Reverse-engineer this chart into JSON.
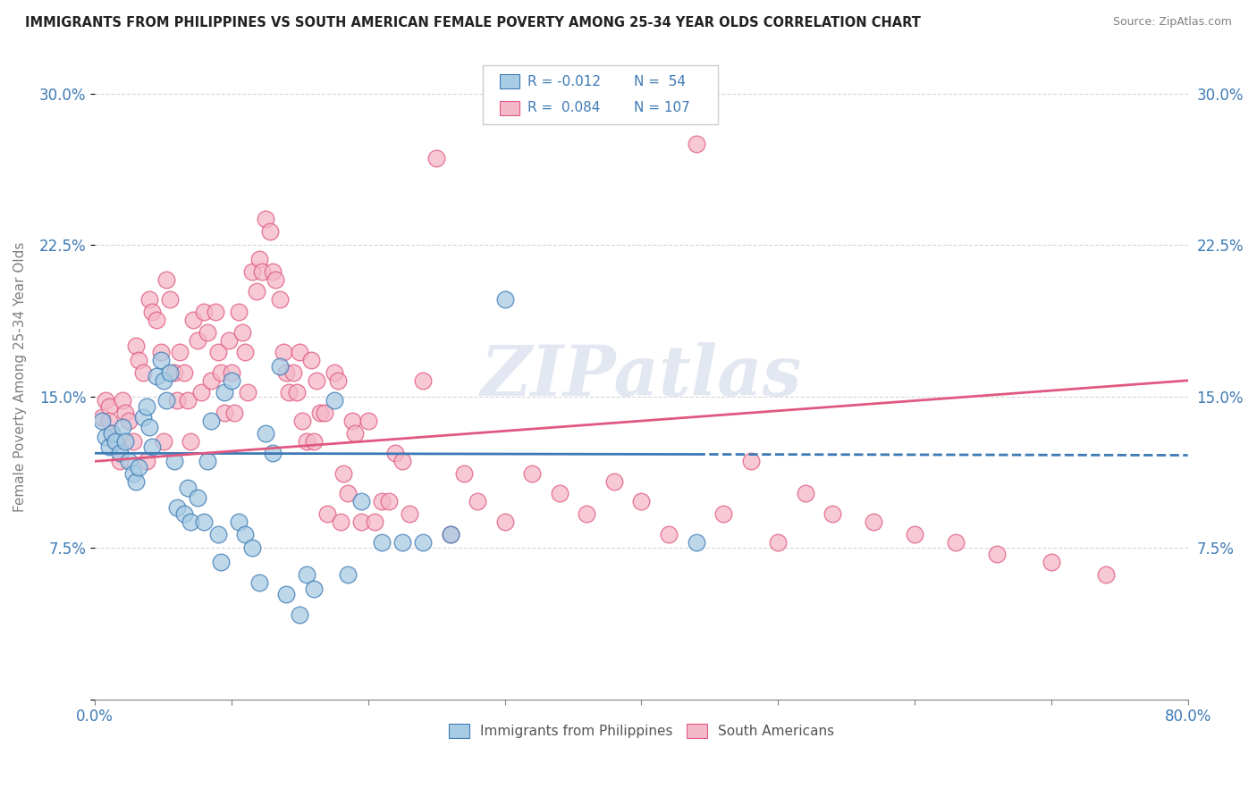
{
  "title": "IMMIGRANTS FROM PHILIPPINES VS SOUTH AMERICAN FEMALE POVERTY AMONG 25-34 YEAR OLDS CORRELATION CHART",
  "source": "Source: ZipAtlas.com",
  "ylabel": "Female Poverty Among 25-34 Year Olds",
  "xlim": [
    0.0,
    0.8
  ],
  "ylim": [
    0.0,
    0.32
  ],
  "yticks": [
    0.0,
    0.075,
    0.15,
    0.225,
    0.3
  ],
  "ytick_labels": [
    "",
    "7.5%",
    "15.0%",
    "22.5%",
    "30.0%"
  ],
  "xticks": [
    0.0,
    0.1,
    0.2,
    0.3,
    0.4,
    0.5,
    0.6,
    0.7,
    0.8
  ],
  "color_blue": "#a8cce4",
  "color_pink": "#f4b8c8",
  "color_blue_dark": "#3d7ab5",
  "color_pink_dark": "#e05880",
  "legend_label1": "Immigrants from Philippines",
  "legend_label2": "South Americans",
  "watermark": "ZIPatlas",
  "philippines_x": [
    0.005,
    0.008,
    0.01,
    0.012,
    0.015,
    0.018,
    0.02,
    0.022,
    0.025,
    0.028,
    0.03,
    0.032,
    0.035,
    0.038,
    0.04,
    0.042,
    0.045,
    0.048,
    0.05,
    0.052,
    0.055,
    0.058,
    0.06,
    0.065,
    0.068,
    0.07,
    0.075,
    0.08,
    0.082,
    0.085,
    0.09,
    0.092,
    0.095,
    0.1,
    0.105,
    0.11,
    0.115,
    0.12,
    0.125,
    0.13,
    0.135,
    0.14,
    0.15,
    0.155,
    0.16,
    0.175,
    0.185,
    0.195,
    0.21,
    0.225,
    0.24,
    0.26,
    0.3,
    0.44
  ],
  "philippines_y": [
    0.138,
    0.13,
    0.125,
    0.132,
    0.128,
    0.122,
    0.135,
    0.128,
    0.118,
    0.112,
    0.108,
    0.115,
    0.14,
    0.145,
    0.135,
    0.125,
    0.16,
    0.168,
    0.158,
    0.148,
    0.162,
    0.118,
    0.095,
    0.092,
    0.105,
    0.088,
    0.1,
    0.088,
    0.118,
    0.138,
    0.082,
    0.068,
    0.152,
    0.158,
    0.088,
    0.082,
    0.075,
    0.058,
    0.132,
    0.122,
    0.165,
    0.052,
    0.042,
    0.062,
    0.055,
    0.148,
    0.062,
    0.098,
    0.078,
    0.078,
    0.078,
    0.082,
    0.198,
    0.078
  ],
  "south_american_x": [
    0.005,
    0.008,
    0.01,
    0.01,
    0.012,
    0.015,
    0.018,
    0.02,
    0.022,
    0.025,
    0.028,
    0.03,
    0.032,
    0.035,
    0.038,
    0.04,
    0.042,
    0.045,
    0.048,
    0.05,
    0.052,
    0.055,
    0.058,
    0.06,
    0.062,
    0.065,
    0.068,
    0.07,
    0.072,
    0.075,
    0.078,
    0.08,
    0.082,
    0.085,
    0.088,
    0.09,
    0.092,
    0.095,
    0.098,
    0.1,
    0.102,
    0.105,
    0.108,
    0.11,
    0.112,
    0.115,
    0.118,
    0.12,
    0.122,
    0.125,
    0.128,
    0.13,
    0.132,
    0.135,
    0.138,
    0.14,
    0.142,
    0.145,
    0.148,
    0.15,
    0.152,
    0.155,
    0.158,
    0.16,
    0.162,
    0.165,
    0.168,
    0.17,
    0.175,
    0.178,
    0.18,
    0.182,
    0.185,
    0.188,
    0.19,
    0.195,
    0.2,
    0.205,
    0.21,
    0.215,
    0.22,
    0.225,
    0.23,
    0.24,
    0.25,
    0.26,
    0.27,
    0.28,
    0.3,
    0.32,
    0.34,
    0.36,
    0.38,
    0.4,
    0.42,
    0.44,
    0.46,
    0.48,
    0.5,
    0.52,
    0.54,
    0.57,
    0.6,
    0.63,
    0.66,
    0.7,
    0.74
  ],
  "south_american_y": [
    0.14,
    0.148,
    0.145,
    0.138,
    0.132,
    0.128,
    0.118,
    0.148,
    0.142,
    0.138,
    0.128,
    0.175,
    0.168,
    0.162,
    0.118,
    0.198,
    0.192,
    0.188,
    0.172,
    0.128,
    0.208,
    0.198,
    0.162,
    0.148,
    0.172,
    0.162,
    0.148,
    0.128,
    0.188,
    0.178,
    0.152,
    0.192,
    0.182,
    0.158,
    0.192,
    0.172,
    0.162,
    0.142,
    0.178,
    0.162,
    0.142,
    0.192,
    0.182,
    0.172,
    0.152,
    0.212,
    0.202,
    0.218,
    0.212,
    0.238,
    0.232,
    0.212,
    0.208,
    0.198,
    0.172,
    0.162,
    0.152,
    0.162,
    0.152,
    0.172,
    0.138,
    0.128,
    0.168,
    0.128,
    0.158,
    0.142,
    0.142,
    0.092,
    0.162,
    0.158,
    0.088,
    0.112,
    0.102,
    0.138,
    0.132,
    0.088,
    0.138,
    0.088,
    0.098,
    0.098,
    0.122,
    0.118,
    0.092,
    0.158,
    0.268,
    0.082,
    0.112,
    0.098,
    0.088,
    0.112,
    0.102,
    0.092,
    0.108,
    0.098,
    0.082,
    0.275,
    0.092,
    0.118,
    0.078,
    0.102,
    0.092,
    0.088,
    0.082,
    0.078,
    0.072,
    0.068,
    0.062
  ],
  "phili_trend_start_x": 0.0,
  "phili_trend_end_solid_x": 0.44,
  "phili_trend_end_dash_x": 0.8,
  "sa_trend_start_x": 0.0,
  "sa_trend_end_x": 0.8,
  "phili_trend_start_y": 0.122,
  "phili_trend_end_y": 0.121,
  "sa_trend_start_y": 0.118,
  "sa_trend_end_y": 0.158
}
